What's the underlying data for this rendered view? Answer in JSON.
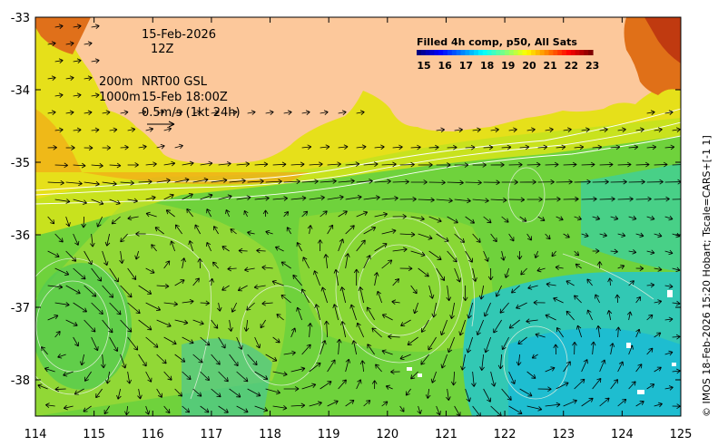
{
  "map": {
    "date": "15-Feb-2026",
    "hour": "12Z",
    "depth_line_1": "200m",
    "model_line_1": "NRT00 GSL",
    "depth_line_2": "1000m",
    "model_line_2": "15-Feb 18:00Z",
    "scale_label": "0.5m/s (1kt 24h)",
    "credit": "© IMOS 18-Feb-2026 15:20 Hobart; Tscale=CARS+[-1 1]",
    "lon_ticks": [
      "114",
      "115",
      "116",
      "117",
      "118",
      "119",
      "120",
      "121",
      "122",
      "123",
      "124",
      "125"
    ],
    "lat_ticks": [
      "-33",
      "-34",
      "-35",
      "-36",
      "-37",
      "-38"
    ],
    "lon_range": [
      114,
      125
    ],
    "lat_range": [
      -38.5,
      -33
    ],
    "land_color": "#fcc89b",
    "coast_land_edge": "#e08030"
  },
  "legend": {
    "title": "Filled 4h comp, p50, All Sats",
    "ticks": [
      "15",
      "16",
      "17",
      "18",
      "19",
      "20",
      "21",
      "22",
      "23"
    ],
    "colors": [
      "#00007f",
      "#0000ff",
      "#007fff",
      "#00ffff",
      "#7fff7f",
      "#ffff00",
      "#ff7f00",
      "#ff0000",
      "#7f0000"
    ]
  }
}
